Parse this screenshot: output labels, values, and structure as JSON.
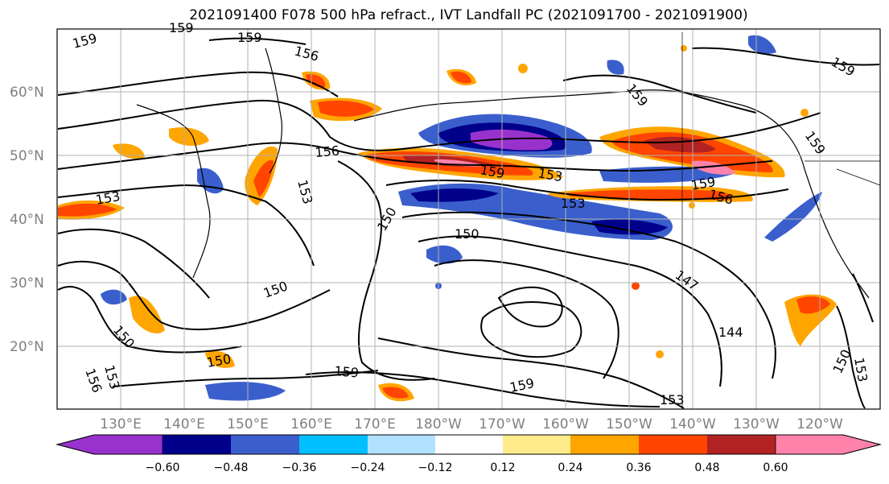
{
  "title": "2021091400 F078 500 hPa refract., IVT Landfall PC (2021091700 - 2021091900)",
  "lat_labels": [
    "60°N",
    "50°N",
    "40°N",
    "30°N",
    "20°N"
  ],
  "lon_labels": [
    "130°E",
    "140°E",
    "150°E",
    "160°E",
    "170°E",
    "180°W",
    "170°W",
    "160°W",
    "150°W",
    "140°W",
    "130°W",
    "120°W"
  ],
  "contour_labels": [
    "159",
    "156",
    "153",
    "150",
    "147",
    "144"
  ],
  "colorbar": {
    "ticks": [
      "−0.60",
      "−0.48",
      "−0.36",
      "−0.24",
      "−0.12",
      "0.12",
      "0.24",
      "0.36",
      "0.48",
      "0.60"
    ],
    "colors": [
      "#9932cc",
      "#00008b",
      "#3a5fcd",
      "#00bfff",
      "#b0e2ff",
      "#ffffff",
      "#ffec8b",
      "#ffa500",
      "#ff4500",
      "#b22222",
      "#ff82ab"
    ]
  }
}
